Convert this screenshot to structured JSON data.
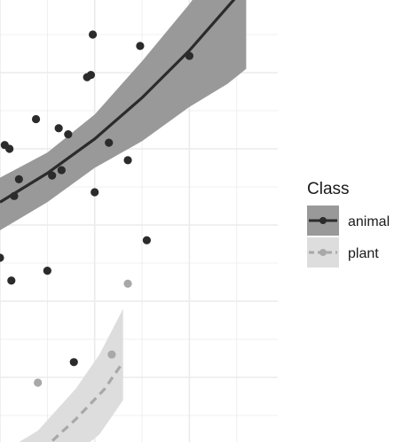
{
  "chart_data": {
    "type": "scatter",
    "title": "",
    "xlabel": "",
    "ylabel": "",
    "xlim": [
      0,
      3
    ],
    "ylim": [
      0,
      6
    ],
    "grid": true,
    "legend": {
      "title": "Class",
      "position": "right",
      "entries": [
        "animal",
        "plant"
      ]
    },
    "series": [
      {
        "name": "animal",
        "color": "#2b2b2b",
        "band_color": "#999999",
        "line_style": "solid",
        "points": [
          [
            0.98,
            5.5
          ],
          [
            1.48,
            5.35
          ],
          [
            2.0,
            5.22
          ],
          [
            0.96,
            4.97
          ],
          [
            0.92,
            4.94
          ],
          [
            0.38,
            4.39
          ],
          [
            0.62,
            4.27
          ],
          [
            0.72,
            4.19
          ],
          [
            1.15,
            4.08
          ],
          [
            0.05,
            4.05
          ],
          [
            0.1,
            4.0
          ],
          [
            1.35,
            3.85
          ],
          [
            0.65,
            3.72
          ],
          [
            0.55,
            3.65
          ],
          [
            0.2,
            3.6
          ],
          [
            1.0,
            3.43
          ],
          [
            0.15,
            3.38
          ],
          [
            1.55,
            2.8
          ],
          [
            0.0,
            2.57
          ],
          [
            0.5,
            2.4
          ],
          [
            0.12,
            2.27
          ],
          [
            0.78,
            1.2
          ]
        ],
        "fit_line": [
          [
            0,
            3.3
          ],
          [
            0.5,
            3.68
          ],
          [
            1.0,
            4.13
          ],
          [
            1.5,
            4.67
          ],
          [
            2.0,
            5.29
          ],
          [
            2.5,
            6.0
          ]
        ],
        "fit_band_upper": [
          [
            0,
            3.62
          ],
          [
            0.5,
            3.95
          ],
          [
            1.0,
            4.45
          ],
          [
            1.5,
            5.15
          ],
          [
            2.0,
            5.9
          ],
          [
            2.5,
            6.75
          ],
          [
            2.6,
            6.95
          ]
        ],
        "fit_band_lower": [
          [
            2.6,
            5.05
          ],
          [
            2.4,
            4.85
          ],
          [
            2.0,
            4.55
          ],
          [
            1.5,
            4.1
          ],
          [
            1.0,
            3.75
          ],
          [
            0.5,
            3.3
          ],
          [
            0,
            2.93
          ]
        ]
      },
      {
        "name": "plant",
        "color": "#a8a8a8",
        "band_color": "#dddddd",
        "line_style": "dashed",
        "points": [
          [
            1.35,
            2.23
          ],
          [
            1.18,
            1.3
          ],
          [
            0.4,
            0.93
          ],
          [
            1.25,
            0.05
          ]
        ],
        "fit_line": [
          [
            0.45,
            0.05
          ],
          [
            0.8,
            0.45
          ],
          [
            1.1,
            0.84
          ],
          [
            1.3,
            1.2
          ]
        ],
        "fit_band_upper": [
          [
            0,
            0.0
          ],
          [
            0.4,
            0.3
          ],
          [
            0.8,
            0.85
          ],
          [
            1.05,
            1.3
          ],
          [
            1.3,
            1.9
          ]
        ],
        "fit_band_lower": [
          [
            1.3,
            0.7
          ],
          [
            1.05,
            0.25
          ],
          [
            0.8,
            0.0
          ]
        ]
      }
    ]
  }
}
